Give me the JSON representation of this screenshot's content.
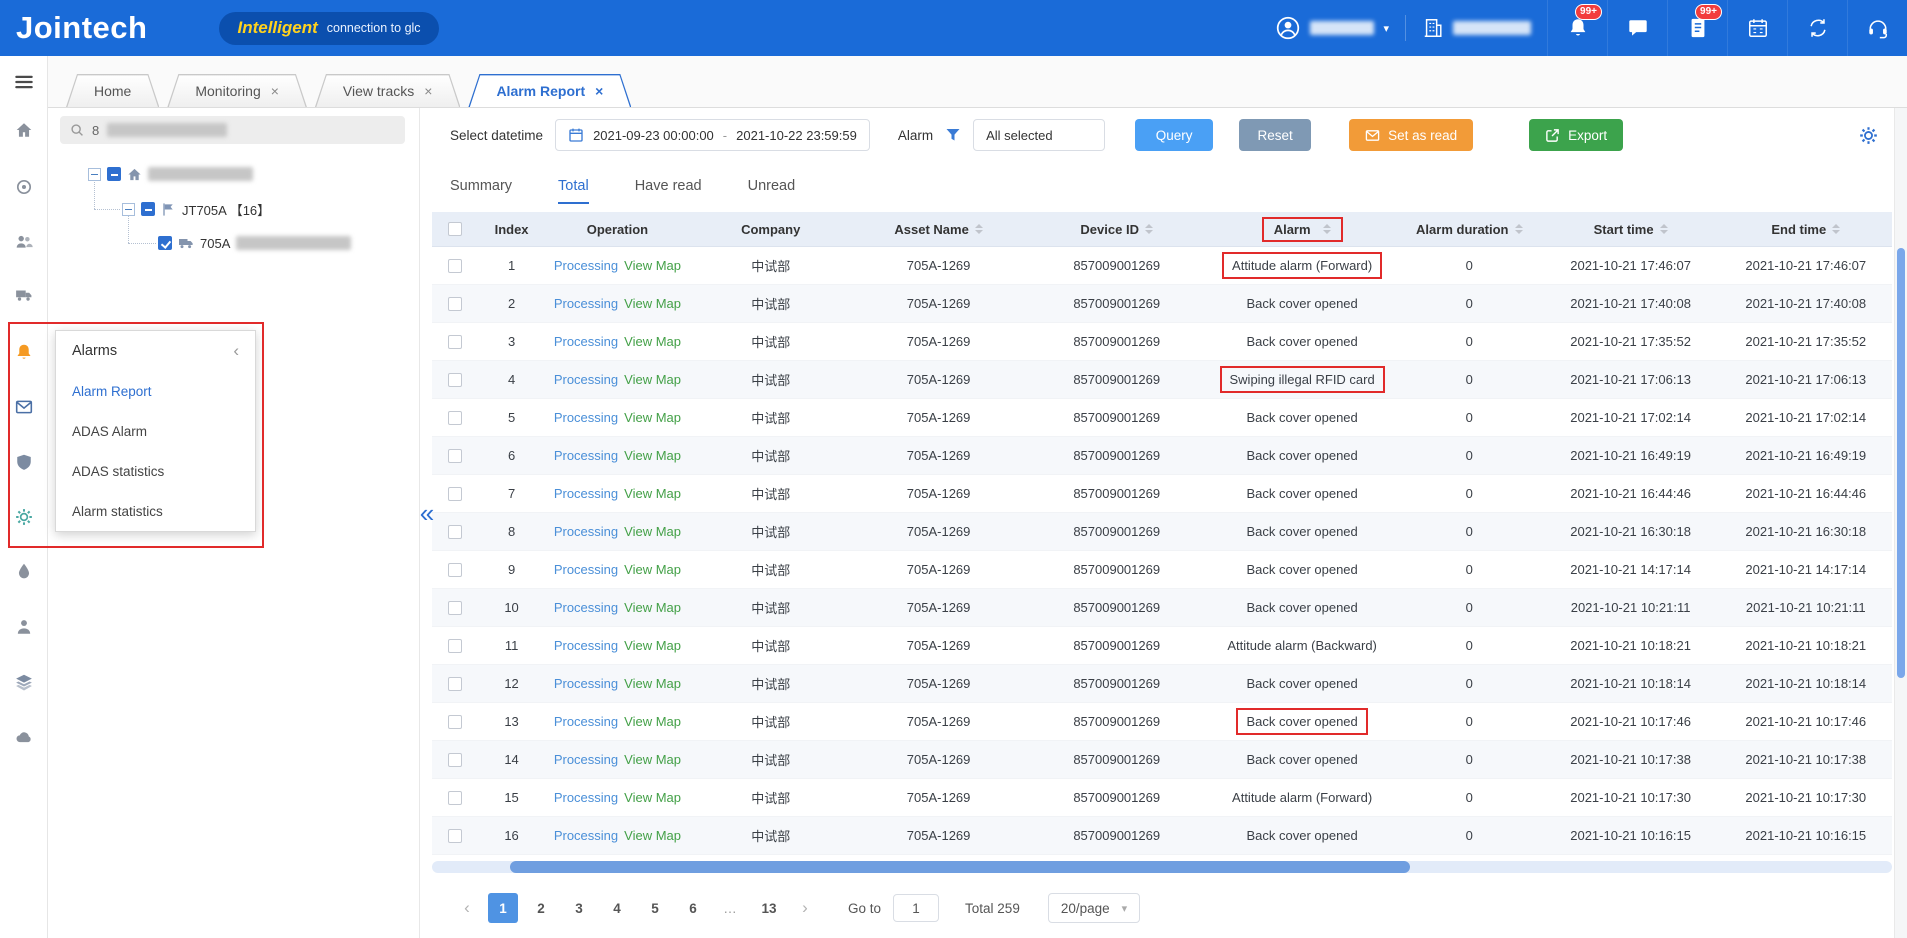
{
  "icons": {
    "close": "×",
    "chevron_down": "▾",
    "select_caret": "▾",
    "collapse_left": "‹",
    "panel_collapse": "«",
    "prev": "‹",
    "next": "›",
    "ellipsis": "…"
  },
  "colors": {
    "topbar": "#1a6bd8",
    "accent": "#2e6fd0",
    "annotation": "#e12a2a",
    "btn_query": "#4aa0f5",
    "btn_reset": "#7f99b4",
    "btn_set_read": "#f29b38",
    "btn_export": "#3ca34c",
    "link_processing": "#4a8fd8",
    "link_view_map": "#43a047",
    "bell_orange": "#f59a23",
    "active_page": "#4f93e3",
    "scroll_thumb": "#6f9ee0"
  },
  "topbar": {
    "logo": "Jointech",
    "tagline_highlight": "Intelligent",
    "tagline_rest": "connection to glc",
    "bell_badge": "99+",
    "doc_badge": "99+"
  },
  "tabs": [
    {
      "label": "Home",
      "closable": false,
      "active": false
    },
    {
      "label": "Monitoring",
      "closable": true,
      "active": false
    },
    {
      "label": "View tracks",
      "closable": true,
      "active": false
    },
    {
      "label": "Alarm Report",
      "closable": true,
      "active": true
    }
  ],
  "tree": {
    "search_text": "8",
    "group_label": "JT705A 【16】",
    "vehicle_label": "705A"
  },
  "alarms_menu": {
    "title": "Alarms",
    "items": [
      {
        "label": "Alarm Report",
        "active": true
      },
      {
        "label": "ADAS Alarm",
        "active": false
      },
      {
        "label": "ADAS statistics",
        "active": false
      },
      {
        "label": "Alarm statistics",
        "active": false
      }
    ]
  },
  "filters": {
    "datetime_label": "Select datetime",
    "datetime_start": "2021-09-23 00:00:00",
    "separator": "-",
    "datetime_end": "2021-10-22 23:59:59",
    "alarm_label": "Alarm",
    "alarm_value": "All selected",
    "query_label": "Query",
    "reset_label": "Reset",
    "set_as_read_label": "Set as read",
    "export_label": "Export"
  },
  "view_tabs": {
    "items": [
      {
        "label": "Summary",
        "active": false
      },
      {
        "label": "Total",
        "active": true
      },
      {
        "label": "Have read",
        "active": false
      },
      {
        "label": "Unread",
        "active": false
      }
    ]
  },
  "table": {
    "columns": [
      {
        "key": "select",
        "label": "",
        "sortable": false
      },
      {
        "key": "index",
        "label": "Index",
        "sortable": false
      },
      {
        "key": "operation",
        "label": "Operation",
        "sortable": false
      },
      {
        "key": "company",
        "label": "Company",
        "sortable": false
      },
      {
        "key": "asset_name",
        "label": "Asset Name",
        "sortable": true
      },
      {
        "key": "device_id",
        "label": "Device ID",
        "sortable": true
      },
      {
        "key": "alarm",
        "label": "Alarm",
        "sortable": true,
        "annotated": true
      },
      {
        "key": "alarm_duration",
        "label": "Alarm duration",
        "sortable": true
      },
      {
        "key": "start_time",
        "label": "Start time",
        "sortable": true
      },
      {
        "key": "end_time",
        "label": "End time",
        "sortable": true
      }
    ],
    "rows": [
      {
        "index": 1,
        "operation": [
          "Processing",
          "View Map"
        ],
        "company": "中试部",
        "asset_name": "705A-1269",
        "device_id": "857009001269",
        "alarm": "Attitude alarm (Forward)",
        "alarm_duration": "0",
        "start_time": "2021-10-21 17:46:07",
        "end_time": "2021-10-21 17:46:07",
        "highlighted": true
      },
      {
        "index": 2,
        "operation": [
          "Processing",
          "View Map"
        ],
        "company": "中试部",
        "asset_name": "705A-1269",
        "device_id": "857009001269",
        "alarm": "Back cover opened",
        "alarm_duration": "0",
        "start_time": "2021-10-21 17:40:08",
        "end_time": "2021-10-21 17:40:08",
        "highlighted": false
      },
      {
        "index": 3,
        "operation": [
          "Processing",
          "View Map"
        ],
        "company": "中试部",
        "asset_name": "705A-1269",
        "device_id": "857009001269",
        "alarm": "Back cover opened",
        "alarm_duration": "0",
        "start_time": "2021-10-21 17:35:52",
        "end_time": "2021-10-21 17:35:52",
        "highlighted": false
      },
      {
        "index": 4,
        "operation": [
          "Processing",
          "View Map"
        ],
        "company": "中试部",
        "asset_name": "705A-1269",
        "device_id": "857009001269",
        "alarm": "Swiping illegal RFID card",
        "alarm_duration": "0",
        "start_time": "2021-10-21 17:06:13",
        "end_time": "2021-10-21 17:06:13",
        "highlighted": true
      },
      {
        "index": 5,
        "operation": [
          "Processing",
          "View Map"
        ],
        "company": "中试部",
        "asset_name": "705A-1269",
        "device_id": "857009001269",
        "alarm": "Back cover opened",
        "alarm_duration": "0",
        "start_time": "2021-10-21 17:02:14",
        "end_time": "2021-10-21 17:02:14",
        "highlighted": false
      },
      {
        "index": 6,
        "operation": [
          "Processing",
          "View Map"
        ],
        "company": "中试部",
        "asset_name": "705A-1269",
        "device_id": "857009001269",
        "alarm": "Back cover opened",
        "alarm_duration": "0",
        "start_time": "2021-10-21 16:49:19",
        "end_time": "2021-10-21 16:49:19",
        "highlighted": false
      },
      {
        "index": 7,
        "operation": [
          "Processing",
          "View Map"
        ],
        "company": "中试部",
        "asset_name": "705A-1269",
        "device_id": "857009001269",
        "alarm": "Back cover opened",
        "alarm_duration": "0",
        "start_time": "2021-10-21 16:44:46",
        "end_time": "2021-10-21 16:44:46",
        "highlighted": false
      },
      {
        "index": 8,
        "operation": [
          "Processing",
          "View Map"
        ],
        "company": "中试部",
        "asset_name": "705A-1269",
        "device_id": "857009001269",
        "alarm": "Back cover opened",
        "alarm_duration": "0",
        "start_time": "2021-10-21 16:30:18",
        "end_time": "2021-10-21 16:30:18",
        "highlighted": false
      },
      {
        "index": 9,
        "operation": [
          "Processing",
          "View Map"
        ],
        "company": "中试部",
        "asset_name": "705A-1269",
        "device_id": "857009001269",
        "alarm": "Back cover opened",
        "alarm_duration": "0",
        "start_time": "2021-10-21 14:17:14",
        "end_time": "2021-10-21 14:17:14",
        "highlighted": false
      },
      {
        "index": 10,
        "operation": [
          "Processing",
          "View Map"
        ],
        "company": "中试部",
        "asset_name": "705A-1269",
        "device_id": "857009001269",
        "alarm": "Back cover opened",
        "alarm_duration": "0",
        "start_time": "2021-10-21 10:21:11",
        "end_time": "2021-10-21 10:21:11",
        "highlighted": false
      },
      {
        "index": 11,
        "operation": [
          "Processing",
          "View Map"
        ],
        "company": "中试部",
        "asset_name": "705A-1269",
        "device_id": "857009001269",
        "alarm": "Attitude alarm (Backward)",
        "alarm_duration": "0",
        "start_time": "2021-10-21 10:18:21",
        "end_time": "2021-10-21 10:18:21",
        "highlighted": false
      },
      {
        "index": 12,
        "operation": [
          "Processing",
          "View Map"
        ],
        "company": "中试部",
        "asset_name": "705A-1269",
        "device_id": "857009001269",
        "alarm": "Back cover opened",
        "alarm_duration": "0",
        "start_time": "2021-10-21 10:18:14",
        "end_time": "2021-10-21 10:18:14",
        "highlighted": false
      },
      {
        "index": 13,
        "operation": [
          "Processing",
          "View Map"
        ],
        "company": "中试部",
        "asset_name": "705A-1269",
        "device_id": "857009001269",
        "alarm": "Back cover opened",
        "alarm_duration": "0",
        "start_time": "2021-10-21 10:17:46",
        "end_time": "2021-10-21 10:17:46",
        "highlighted": true
      },
      {
        "index": 14,
        "operation": [
          "Processing",
          "View Map"
        ],
        "company": "中试部",
        "asset_name": "705A-1269",
        "device_id": "857009001269",
        "alarm": "Back cover opened",
        "alarm_duration": "0",
        "start_time": "2021-10-21 10:17:38",
        "end_time": "2021-10-21 10:17:38",
        "highlighted": false
      },
      {
        "index": 15,
        "operation": [
          "Processing",
          "View Map"
        ],
        "company": "中试部",
        "asset_name": "705A-1269",
        "device_id": "857009001269",
        "alarm": "Attitude alarm (Forward)",
        "alarm_duration": "0",
        "start_time": "2021-10-21 10:17:30",
        "end_time": "2021-10-21 10:17:30",
        "highlighted": false
      },
      {
        "index": 16,
        "operation": [
          "Processing",
          "View Map"
        ],
        "company": "中试部",
        "asset_name": "705A-1269",
        "device_id": "857009001269",
        "alarm": "Back cover opened",
        "alarm_duration": "0",
        "start_time": "2021-10-21 10:16:15",
        "end_time": "2021-10-21 10:16:15",
        "highlighted": false
      }
    ]
  },
  "pagination": {
    "pages": [
      "1",
      "2",
      "3",
      "4",
      "5",
      "6",
      "…",
      "13"
    ],
    "active_page": "1",
    "goto_label": "Go to",
    "goto_value": "1",
    "total_text": "Total 259",
    "page_size": "20/page"
  }
}
